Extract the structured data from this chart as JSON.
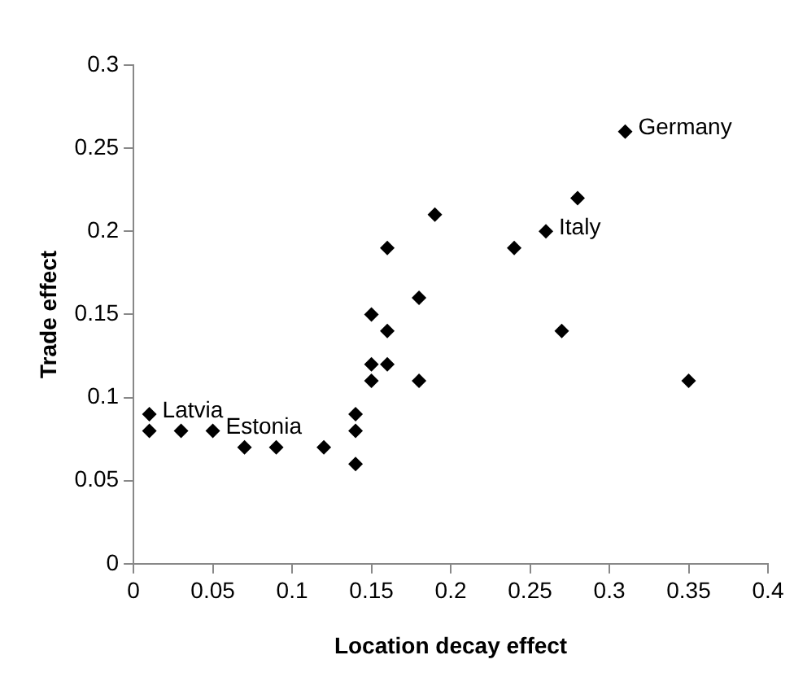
{
  "chart_data": {
    "type": "scatter",
    "xlabel": "Location decay effect",
    "ylabel": "Trade effect",
    "x": [
      0.01,
      0.01,
      0.03,
      0.05,
      0.07,
      0.09,
      0.12,
      0.14,
      0.14,
      0.14,
      0.15,
      0.15,
      0.15,
      0.16,
      0.16,
      0.16,
      0.18,
      0.18,
      0.19,
      0.24,
      0.26,
      0.27,
      0.28,
      0.31,
      0.35
    ],
    "values": [
      0.09,
      0.08,
      0.08,
      0.08,
      0.07,
      0.07,
      0.07,
      0.09,
      0.08,
      0.06,
      0.15,
      0.12,
      0.11,
      0.19,
      0.14,
      0.12,
      0.16,
      0.11,
      0.21,
      0.19,
      0.2,
      0.14,
      0.22,
      0.26,
      0.11
    ],
    "color": "#000000",
    "marker": "diamond",
    "xlim": [
      0,
      0.4
    ],
    "xticks": [
      0,
      0.05,
      0.1,
      0.15,
      0.2,
      0.25,
      0.3,
      0.35,
      0.4
    ],
    "ylim": [
      0,
      0.3
    ],
    "yticks": [
      0,
      0.05,
      0.1,
      0.15,
      0.2,
      0.25,
      0.3
    ],
    "grid": false,
    "legend": false,
    "annotations": [
      {
        "text": "Germany",
        "x": 0.31,
        "y": 0.26
      },
      {
        "text": "Italy",
        "x": 0.26,
        "y": 0.2
      },
      {
        "text": "Latvia",
        "x": 0.01,
        "y": 0.09
      },
      {
        "text": "Estonia",
        "x": 0.05,
        "y": 0.08
      }
    ]
  }
}
